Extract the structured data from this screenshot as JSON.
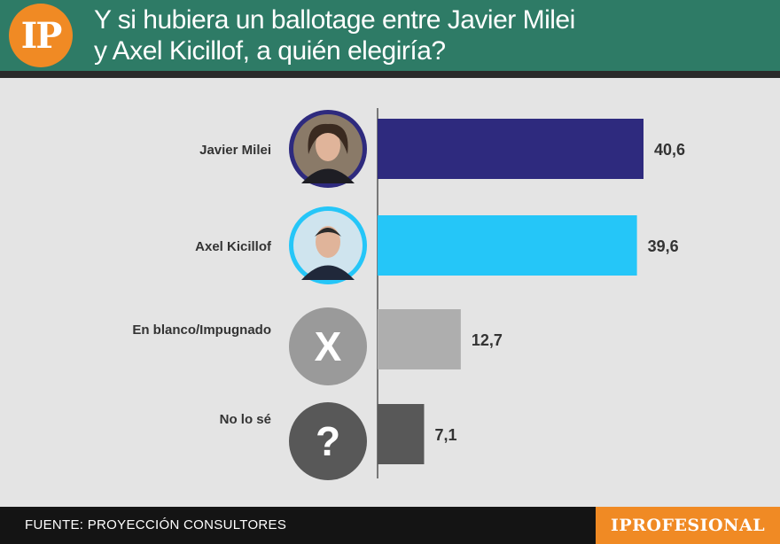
{
  "header": {
    "logo": "IP",
    "title_line1": "Y si hubiera un ballotage entre Javier Milei",
    "title_line2": "y Axel Kicillof, a quién elegiría?"
  },
  "footer": {
    "source": "FUENTE: PROYECCIÓN CONSULTORES",
    "brand": "IPROFESIONAL"
  },
  "colors": {
    "header_bg": "#2e7b66",
    "accent_orange": "#f08a24",
    "background": "#e4e4e4"
  },
  "chart_data": {
    "type": "bar",
    "orientation": "horizontal",
    "title": "Y si hubiera un ballotage entre Javier Milei y Axel Kicillof, a quién elegiría?",
    "categories": [
      "Javier Milei",
      "Axel Kicillof",
      "En blanco/Impugnado",
      "No lo sé"
    ],
    "values": [
      40.6,
      39.6,
      12.7,
      7.1
    ],
    "value_labels": [
      "40,6",
      "39,6",
      "12,7",
      "7,1"
    ],
    "colors": [
      "#2e2a7e",
      "#25c6f8",
      "#aeaeae",
      "#585858"
    ],
    "icons": [
      "milei-portrait",
      "kicillof-portrait",
      "x-icon",
      "question-icon"
    ],
    "xlim": [
      0,
      45
    ],
    "grid": false,
    "legend": "none",
    "source": "FUENTE: PROYECCIÓN CONSULTORES"
  }
}
